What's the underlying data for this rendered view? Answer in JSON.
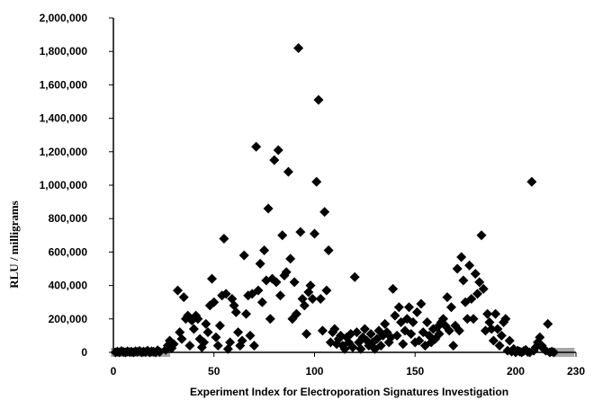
{
  "chart_data": {
    "type": "scatter",
    "title": "",
    "xlabel": "Experiment Index for Electroporation Signatures Investigation",
    "ylabel": "RLU / milligrams",
    "xlim": [
      0,
      230
    ],
    "ylim": [
      0,
      2000000
    ],
    "x_ticks": [
      0,
      50,
      100,
      150,
      200,
      230
    ],
    "x_tick_labels": [
      "0",
      "50",
      "100",
      "150",
      "200",
      "230"
    ],
    "y_ticks": [
      0,
      200000,
      400000,
      600000,
      800000,
      1000000,
      1200000,
      1400000,
      1600000,
      1800000,
      2000000
    ],
    "y_tick_labels": [
      "0",
      "200,000",
      "400,000",
      "600,000",
      "800,000",
      "1,000,000",
      "1,200,000",
      "1,400,000",
      "1,600,000",
      "1,800,000",
      "2,000,000"
    ],
    "grid": false,
    "legend": "none",
    "colors": {
      "marker": "#000000",
      "gray_marker": "#a6a6a6",
      "axis": "#000000"
    },
    "series": [
      {
        "marker": "diamond",
        "color": "#000000",
        "points": [
          [
            1,
            0
          ],
          [
            2,
            5000
          ],
          [
            3,
            0
          ],
          [
            4,
            8000
          ],
          [
            5,
            3000
          ],
          [
            6,
            0
          ],
          [
            7,
            6000
          ],
          [
            8,
            2000
          ],
          [
            9,
            4000
          ],
          [
            10,
            0
          ],
          [
            11,
            7000
          ],
          [
            12,
            3000
          ],
          [
            13,
            9000
          ],
          [
            14,
            0
          ],
          [
            15,
            5000
          ],
          [
            16,
            2000
          ],
          [
            17,
            10000
          ],
          [
            18,
            0
          ],
          [
            19,
            6000
          ],
          [
            20,
            4000
          ],
          [
            21,
            0
          ],
          [
            22,
            12000
          ],
          [
            23,
            3000
          ],
          [
            26,
            15000
          ],
          [
            27,
            40000
          ],
          [
            28,
            70000
          ],
          [
            29,
            25000
          ],
          [
            30,
            50000
          ],
          [
            32,
            370000
          ],
          [
            33,
            120000
          ],
          [
            34,
            80000
          ],
          [
            35,
            330000
          ],
          [
            36,
            200000
          ],
          [
            37,
            220000
          ],
          [
            38,
            40000
          ],
          [
            39,
            190000
          ],
          [
            40,
            140000
          ],
          [
            41,
            220000
          ],
          [
            42,
            200000
          ],
          [
            43,
            80000
          ],
          [
            44,
            30000
          ],
          [
            45,
            60000
          ],
          [
            46,
            170000
          ],
          [
            47,
            120000
          ],
          [
            48,
            280000
          ],
          [
            49,
            440000
          ],
          [
            50,
            300000
          ],
          [
            51,
            90000
          ],
          [
            52,
            40000
          ],
          [
            53,
            160000
          ],
          [
            54,
            340000
          ],
          [
            55,
            680000
          ],
          [
            56,
            350000
          ],
          [
            57,
            20000
          ],
          [
            58,
            60000
          ],
          [
            59,
            320000
          ],
          [
            60,
            280000
          ],
          [
            61,
            240000
          ],
          [
            62,
            120000
          ],
          [
            63,
            40000
          ],
          [
            64,
            70000
          ],
          [
            65,
            580000
          ],
          [
            66,
            230000
          ],
          [
            67,
            340000
          ],
          [
            68,
            100000
          ],
          [
            69,
            350000
          ],
          [
            70,
            40000
          ],
          [
            71,
            1230000
          ],
          [
            72,
            370000
          ],
          [
            73,
            530000
          ],
          [
            74,
            300000
          ],
          [
            75,
            610000
          ],
          [
            76,
            430000
          ],
          [
            77,
            860000
          ],
          [
            78,
            200000
          ],
          [
            79,
            440000
          ],
          [
            80,
            1150000
          ],
          [
            81,
            420000
          ],
          [
            82,
            1210000
          ],
          [
            83,
            340000
          ],
          [
            84,
            700000
          ],
          [
            85,
            460000
          ],
          [
            86,
            480000
          ],
          [
            87,
            1080000
          ],
          [
            88,
            560000
          ],
          [
            89,
            200000
          ],
          [
            90,
            420000
          ],
          [
            91,
            230000
          ],
          [
            92,
            1820000
          ],
          [
            93,
            720000
          ],
          [
            94,
            320000
          ],
          [
            95,
            280000
          ],
          [
            96,
            110000
          ],
          [
            97,
            360000
          ],
          [
            98,
            400000
          ],
          [
            99,
            320000
          ],
          [
            100,
            710000
          ],
          [
            101,
            1020000
          ],
          [
            102,
            1510000
          ],
          [
            103,
            320000
          ],
          [
            104,
            130000
          ],
          [
            105,
            840000
          ],
          [
            106,
            370000
          ],
          [
            107,
            610000
          ],
          [
            108,
            60000
          ],
          [
            109,
            120000
          ],
          [
            110,
            140000
          ],
          [
            111,
            50000
          ],
          [
            112,
            80000
          ],
          [
            113,
            100000
          ],
          [
            114,
            40000
          ],
          [
            115,
            20000
          ],
          [
            116,
            90000
          ],
          [
            117,
            60000
          ],
          [
            118,
            110000
          ],
          [
            119,
            30000
          ],
          [
            120,
            450000
          ],
          [
            121,
            120000
          ],
          [
            122,
            60000
          ],
          [
            123,
            20000
          ],
          [
            124,
            90000
          ],
          [
            125,
            140000
          ],
          [
            126,
            70000
          ],
          [
            127,
            40000
          ],
          [
            128,
            110000
          ],
          [
            129,
            60000
          ],
          [
            130,
            20000
          ],
          [
            131,
            80000
          ],
          [
            132,
            130000
          ],
          [
            133,
            40000
          ],
          [
            134,
            100000
          ],
          [
            135,
            170000
          ],
          [
            136,
            120000
          ],
          [
            137,
            60000
          ],
          [
            138,
            90000
          ],
          [
            139,
            380000
          ],
          [
            140,
            220000
          ],
          [
            141,
            100000
          ],
          [
            142,
            270000
          ],
          [
            143,
            180000
          ],
          [
            144,
            50000
          ],
          [
            145,
            130000
          ],
          [
            146,
            200000
          ],
          [
            147,
            270000
          ],
          [
            148,
            110000
          ],
          [
            149,
            180000
          ],
          [
            150,
            60000
          ],
          [
            151,
            240000
          ],
          [
            152,
            70000
          ],
          [
            153,
            290000
          ],
          [
            154,
            120000
          ],
          [
            155,
            40000
          ],
          [
            156,
            180000
          ],
          [
            157,
            100000
          ],
          [
            158,
            60000
          ],
          [
            159,
            140000
          ],
          [
            160,
            80000
          ],
          [
            161,
            150000
          ],
          [
            162,
            110000
          ],
          [
            163,
            180000
          ],
          [
            164,
            200000
          ],
          [
            165,
            160000
          ],
          [
            166,
            330000
          ],
          [
            167,
            130000
          ],
          [
            168,
            270000
          ],
          [
            169,
            40000
          ],
          [
            170,
            160000
          ],
          [
            171,
            500000
          ],
          [
            172,
            130000
          ],
          [
            173,
            570000
          ],
          [
            174,
            430000
          ],
          [
            175,
            300000
          ],
          [
            176,
            200000
          ],
          [
            177,
            520000
          ],
          [
            178,
            320000
          ],
          [
            179,
            200000
          ],
          [
            180,
            470000
          ],
          [
            181,
            350000
          ],
          [
            182,
            420000
          ],
          [
            183,
            700000
          ],
          [
            184,
            380000
          ],
          [
            185,
            130000
          ],
          [
            186,
            230000
          ],
          [
            187,
            180000
          ],
          [
            188,
            140000
          ],
          [
            189,
            70000
          ],
          [
            190,
            230000
          ],
          [
            191,
            140000
          ],
          [
            192,
            40000
          ],
          [
            193,
            100000
          ],
          [
            194,
            180000
          ],
          [
            195,
            200000
          ],
          [
            196,
            10000
          ],
          [
            197,
            70000
          ],
          [
            198,
            5000
          ],
          [
            199,
            20000
          ],
          [
            200,
            0
          ],
          [
            201,
            10000
          ],
          [
            202,
            5000
          ],
          [
            203,
            0
          ],
          [
            204,
            8000
          ],
          [
            205,
            15000
          ],
          [
            206,
            3000
          ],
          [
            207,
            0
          ],
          [
            208,
            1020000
          ],
          [
            209,
            10000
          ],
          [
            210,
            30000
          ],
          [
            211,
            60000
          ],
          [
            212,
            90000
          ],
          [
            213,
            40000
          ],
          [
            214,
            20000
          ],
          [
            215,
            10000
          ],
          [
            216,
            170000
          ],
          [
            217,
            0
          ],
          [
            218,
            5000
          ],
          [
            219,
            0
          ]
        ]
      },
      {
        "marker": "square",
        "color": "#a6a6a6",
        "points": [
          [
            1,
            0
          ],
          [
            5,
            0
          ],
          [
            10,
            0
          ],
          [
            15,
            0
          ],
          [
            20,
            0
          ],
          [
            24,
            0
          ],
          [
            25,
            0
          ],
          [
            26,
            0
          ],
          [
            221,
            0
          ],
          [
            222,
            0
          ],
          [
            223,
            0
          ],
          [
            224,
            0
          ],
          [
            225,
            0
          ],
          [
            226,
            0
          ],
          [
            227,
            0
          ]
        ]
      }
    ]
  }
}
